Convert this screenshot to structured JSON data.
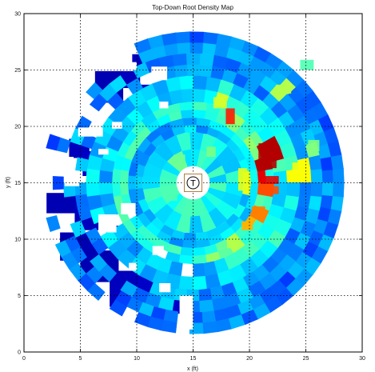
{
  "chart_data": {
    "type": "heatmap",
    "title": "Top-Down Root Density Map",
    "xlabel": "x (ft)",
    "ylabel": "y (ft)",
    "xlim": [
      0,
      30
    ],
    "ylim": [
      0,
      30
    ],
    "xticks": [
      0,
      5,
      10,
      15,
      20,
      25,
      30
    ],
    "yticks": [
      0,
      5,
      10,
      15,
      20,
      25,
      30
    ],
    "grid": true,
    "grid_style": "dotted",
    "colormap": "jet",
    "center_marker": {
      "x": 15,
      "y": 15,
      "label": "T"
    },
    "rings": [
      {
        "r_inner": 1.5,
        "r_outer": 4.5,
        "intensity": 0.38
      },
      {
        "r_inner": 4.5,
        "r_outer": 5.8,
        "intensity": 0.3
      },
      {
        "r_inner": 5.8,
        "r_outer": 7.2,
        "intensity": 0.4
      },
      {
        "r_inner": 7.2,
        "r_outer": 9.5,
        "intensity": 0.32
      },
      {
        "r_inner": 9.5,
        "r_outer": 11.5,
        "intensity": 0.28
      },
      {
        "r_inner": 11.5,
        "r_outer": 13.4,
        "intensity": 0.25
      }
    ],
    "hotspots": [
      {
        "x": 20.8,
        "y": 16.3,
        "w": 1.6,
        "h": 2.2,
        "value": 0.95
      },
      {
        "x": 21.0,
        "y": 14.9,
        "w": 1.6,
        "h": 0.7,
        "value": 0.9
      },
      {
        "x": 21.0,
        "y": 14.0,
        "w": 1.6,
        "h": 0.7,
        "value": 0.8
      },
      {
        "x": 17.9,
        "y": 20.2,
        "w": 0.8,
        "h": 1.4,
        "value": 0.85
      },
      {
        "x": 20.2,
        "y": 12.1,
        "w": 1.2,
        "h": 0.8,
        "value": 0.75
      },
      {
        "x": 19.3,
        "y": 10.8,
        "w": 1.0,
        "h": 0.8,
        "value": 0.7
      },
      {
        "x": 23.8,
        "y": 15.4,
        "w": 1.4,
        "h": 1.4,
        "value": 0.62
      },
      {
        "x": 19.0,
        "y": 14.3,
        "w": 0.8,
        "h": 2.0,
        "value": 0.6
      },
      {
        "x": 16.8,
        "y": 21.6,
        "w": 1.2,
        "h": 1.0,
        "value": 0.58
      },
      {
        "x": 22.5,
        "y": 22.9,
        "w": 1.2,
        "h": 0.8,
        "value": 0.55
      },
      {
        "x": 18.0,
        "y": 9.2,
        "w": 1.0,
        "h": 0.8,
        "value": 0.55
      },
      {
        "x": 25.2,
        "y": 17.8,
        "w": 1.0,
        "h": 1.0,
        "value": 0.5
      },
      {
        "x": 16.2,
        "y": 17.3,
        "w": 0.8,
        "h": 0.9,
        "value": 0.5
      },
      {
        "x": 13.3,
        "y": 16.5,
        "w": 1.0,
        "h": 1.0,
        "value": 0.48
      },
      {
        "x": 12.6,
        "y": 13.4,
        "w": 1.0,
        "h": 1.2,
        "value": 0.45
      },
      {
        "x": 24.5,
        "y": 25.0,
        "w": 1.2,
        "h": 0.9,
        "value": 0.45
      }
    ],
    "outlier_patches": [
      {
        "x": 6.3,
        "y": 22.1,
        "w": 2.5,
        "h": 2.8,
        "value": 0.05
      },
      {
        "x": 8.6,
        "y": 23.4,
        "w": 1.7,
        "h": 1.5,
        "value": 0.06
      },
      {
        "x": 9.6,
        "y": 25.2,
        "w": 1.7,
        "h": 1.2,
        "value": 0.06
      },
      {
        "x": 10.3,
        "y": 22.4,
        "w": 1.7,
        "h": 1.3,
        "value": 0.07
      },
      {
        "x": 8.3,
        "y": 20.6,
        "w": 2.0,
        "h": 1.6,
        "value": 0.06
      },
      {
        "x": 10.8,
        "y": 19.2,
        "w": 2.0,
        "h": 1.6,
        "value": 0.08
      },
      {
        "x": 4.0,
        "y": 17.2,
        "w": 1.8,
        "h": 1.7,
        "value": 0.06
      },
      {
        "x": 5.2,
        "y": 15.6,
        "w": 2.2,
        "h": 2.2,
        "value": 0.07
      },
      {
        "x": 2.0,
        "y": 12.3,
        "w": 2.8,
        "h": 1.8,
        "value": 0.05
      },
      {
        "x": 4.5,
        "y": 10.8,
        "w": 2.3,
        "h": 2.8,
        "value": 0.06
      },
      {
        "x": 3.2,
        "y": 8.1,
        "w": 3.2,
        "h": 2.5,
        "value": 0.05
      },
      {
        "x": 5.0,
        "y": 6.2,
        "w": 3.4,
        "h": 2.8,
        "value": 0.05
      },
      {
        "x": 7.6,
        "y": 4.0,
        "w": 3.4,
        "h": 3.2,
        "value": 0.06
      },
      {
        "x": 10.0,
        "y": 5.0,
        "w": 3.0,
        "h": 2.7,
        "value": 0.07
      },
      {
        "x": 12.8,
        "y": 3.4,
        "w": 2.6,
        "h": 3.2,
        "value": 0.07
      },
      {
        "x": 6.1,
        "y": 12.9,
        "w": 2.4,
        "h": 2.3,
        "value": 0.08
      },
      {
        "x": 14.6,
        "y": 23.0,
        "w": 2.2,
        "h": 2.4,
        "value": 0.08
      },
      {
        "x": 12.8,
        "y": 20.8,
        "w": 1.6,
        "h": 1.4,
        "value": 0.07
      },
      {
        "x": 7.3,
        "y": 9.2,
        "w": 2.3,
        "h": 2.0,
        "value": 0.06
      }
    ],
    "holes": [
      {
        "x": 9.1,
        "y": 25.0,
        "w": 0.9,
        "h": 0.7
      },
      {
        "x": 7.8,
        "y": 19.8,
        "w": 0.9,
        "h": 0.6
      },
      {
        "x": 12.0,
        "y": 21.6,
        "w": 0.8,
        "h": 0.6
      },
      {
        "x": 4.8,
        "y": 19.1,
        "w": 2.2,
        "h": 0.8
      },
      {
        "x": 6.6,
        "y": 17.5,
        "w": 0.9,
        "h": 0.5
      },
      {
        "x": 3.6,
        "y": 14.7,
        "w": 1.3,
        "h": 0.6
      },
      {
        "x": 6.6,
        "y": 10.6,
        "w": 1.6,
        "h": 1.6
      },
      {
        "x": 8.6,
        "y": 12.2,
        "w": 1.3,
        "h": 1.0
      },
      {
        "x": 11.4,
        "y": 8.6,
        "w": 1.0,
        "h": 0.8
      },
      {
        "x": 12.0,
        "y": 5.3,
        "w": 1.0,
        "h": 0.8
      },
      {
        "x": 9.3,
        "y": 7.2,
        "w": 0.7,
        "h": 0.7
      },
      {
        "x": 13.8,
        "y": 2.0,
        "w": 1.2,
        "h": 3.0
      },
      {
        "x": 14.1,
        "y": 6.8,
        "w": 0.9,
        "h": 0.8
      },
      {
        "x": 2.4,
        "y": 16.1,
        "w": 2.0,
        "h": 1.2
      },
      {
        "x": 11.3,
        "y": 24.1,
        "w": 1.4,
        "h": 1.2
      }
    ]
  }
}
